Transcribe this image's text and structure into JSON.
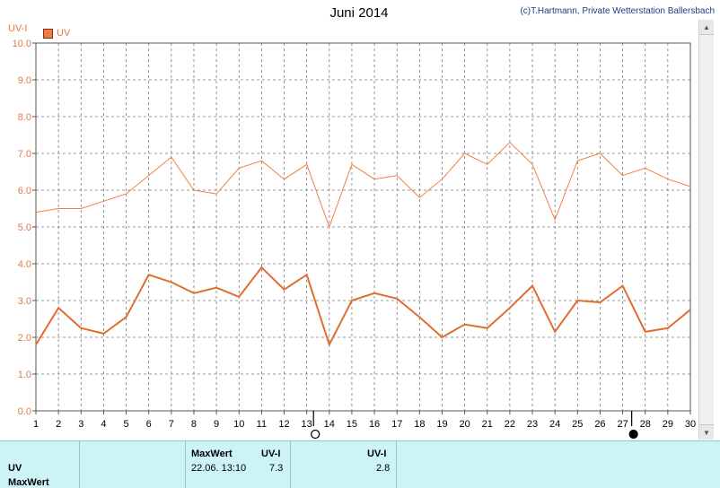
{
  "header": {
    "title": "Juni 2014",
    "copyright": "(c)T.Hartmann, Private Wetterstation Ballersbach"
  },
  "colors": {
    "series": "#f08040",
    "series_dark": "#e06e30",
    "grid": "#7a7a7a",
    "axis_text": "#e07a45",
    "panel_bg": "#ccf4f6"
  },
  "chart_data": {
    "type": "line",
    "title": "Juni 2014",
    "ylabel": "UV-I",
    "xlabel": "",
    "ylim": [
      0,
      10
    ],
    "y_ticks": [
      "0.0",
      "1.0",
      "2.0",
      "3.0",
      "4.0",
      "5.0",
      "6.0",
      "7.0",
      "8.0",
      "9.0",
      "10.0"
    ],
    "x": [
      1,
      2,
      3,
      4,
      5,
      6,
      7,
      8,
      9,
      10,
      11,
      12,
      13,
      14,
      15,
      16,
      17,
      18,
      19,
      20,
      21,
      22,
      23,
      24,
      25,
      26,
      27,
      28,
      29,
      30
    ],
    "legend": [
      "UV"
    ],
    "legend_position": "top-left",
    "grid": true,
    "series": [
      {
        "name": "UV",
        "kind": "daily-max",
        "values": [
          5.4,
          5.5,
          5.5,
          5.7,
          5.9,
          6.4,
          6.9,
          6.0,
          5.9,
          6.6,
          6.8,
          6.3,
          6.7,
          5.0,
          6.7,
          6.3,
          6.4,
          5.8,
          6.3,
          7.0,
          6.7,
          7.3,
          6.7,
          5.2,
          6.8,
          7.0,
          6.4,
          6.6,
          6.3,
          6.1
        ]
      },
      {
        "name": "UV",
        "kind": "daily-mean",
        "values": [
          1.8,
          2.8,
          2.25,
          2.1,
          2.55,
          3.7,
          3.5,
          3.2,
          3.35,
          3.1,
          3.9,
          3.3,
          3.7,
          1.8,
          3.0,
          3.2,
          3.05,
          2.55,
          2.0,
          2.35,
          2.25,
          2.8,
          3.4,
          2.15,
          3.0,
          2.95,
          3.4,
          2.15,
          2.25,
          2.75
        ]
      }
    ],
    "moon_phases": [
      {
        "day": 13.3,
        "phase": "full-moon"
      },
      {
        "day": 27.4,
        "phase": "new-moon"
      }
    ]
  },
  "info_panel": {
    "row_label_1": "UV",
    "row_label_2": "MaxWert",
    "max_header": "MaxWert",
    "max_unit_header": "UV-I",
    "max_timestamp": "22.06.  13:10",
    "max_value": "7.3",
    "mean_unit_header": "UV-I",
    "mean_value": "2.8"
  }
}
